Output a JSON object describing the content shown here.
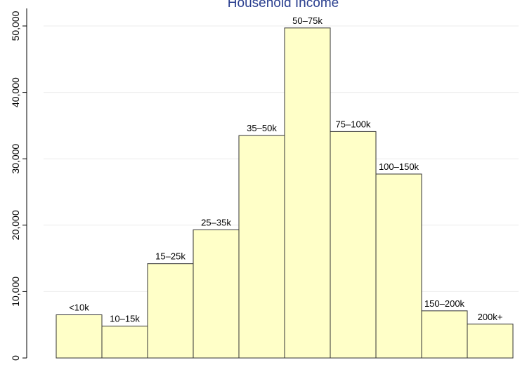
{
  "chart_data": {
    "type": "bar",
    "title": "Household Income",
    "xlabel": "",
    "ylabel": "",
    "categories": [
      "<10k",
      "10–15k",
      "15–25k",
      "25–35k",
      "35–50k",
      "50–75k",
      "75–100k",
      "100–150k",
      "150–200k",
      "200k+"
    ],
    "values": [
      6500,
      4800,
      14200,
      19300,
      33500,
      49700,
      34100,
      27700,
      7100,
      5100
    ],
    "ylim": [
      0,
      52000
    ],
    "yticks": [
      0,
      10000,
      20000,
      30000,
      40000,
      50000
    ],
    "ytick_labels": [
      "0",
      "10,000",
      "20,000",
      "30,000",
      "40,000",
      "50,000"
    ],
    "grid": true,
    "legend": "none",
    "colors": {
      "bar_fill": "#ffffc8",
      "bar_stroke": "#333333",
      "grid": "#ebebeb",
      "title": "#2a3f8f",
      "axis": "#000000"
    }
  }
}
